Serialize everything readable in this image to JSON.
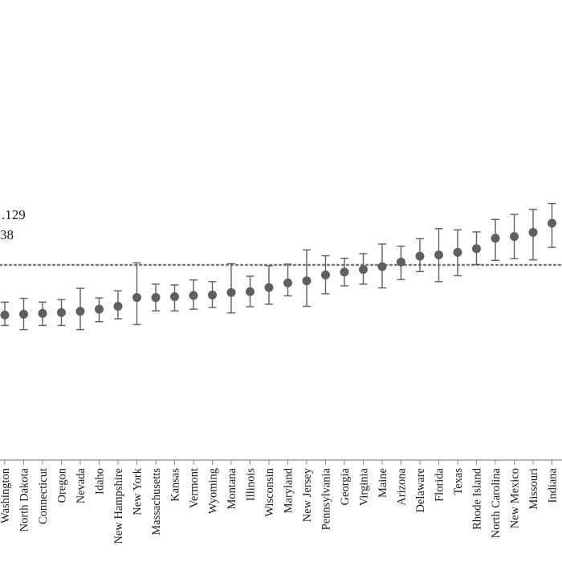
{
  "chart_data": {
    "type": "scatter",
    "title": "",
    "xlabel": "",
    "ylabel": "",
    "ylim": [
      -0.4,
      0.4
    ],
    "grid": false,
    "legend": "none",
    "reference_line": {
      "y": 0.0,
      "style": "dotted"
    },
    "annotations": [
      ".129",
      "38"
    ],
    "colors": {
      "marker": "#5f5f5f",
      "errorbar": "#5f5f5f",
      "reference_line": "#7a7a7a",
      "axis": "#8a8a8a",
      "text": "#1a1a1a"
    },
    "categories": [
      "Washington",
      "North Dakota",
      "Connecticut",
      "Oregon",
      "Nevada",
      "Idaho",
      "New Hampshire",
      "New York",
      "Massachusetts",
      "Kansas",
      "Vermont",
      "Wyoming",
      "Montana",
      "Illinois",
      "Wisconsin",
      "Maryland",
      "New Jersey",
      "Pennsylvania",
      "Georgia",
      "Virginia",
      "Maine",
      "Arizona",
      "Delaware",
      "Florida",
      "Texas",
      "Rhode Island",
      "North Carolina",
      "New Mexico",
      "Missouri",
      "Indiana"
    ],
    "series": [
      {
        "values": [
          -0.24,
          -0.236,
          -0.232,
          -0.228,
          -0.222,
          -0.212,
          -0.198,
          -0.156,
          -0.156,
          -0.152,
          -0.146,
          -0.144,
          -0.132,
          -0.128,
          -0.108,
          -0.086,
          -0.076,
          -0.048,
          -0.034,
          -0.022,
          -0.008,
          0.014,
          0.042,
          0.048,
          0.06,
          0.078,
          0.128,
          0.136,
          0.156,
          0.2
        ],
        "lower": [
          -0.29,
          -0.31,
          -0.29,
          -0.29,
          -0.31,
          -0.272,
          -0.258,
          -0.286,
          -0.22,
          -0.22,
          -0.212,
          -0.204,
          -0.23,
          -0.2,
          -0.188,
          -0.148,
          -0.198,
          -0.138,
          -0.1,
          -0.092,
          -0.11,
          -0.07,
          -0.032,
          -0.08,
          -0.052,
          0.002,
          0.022,
          0.03,
          0.024,
          0.084
        ],
        "upper": [
          -0.178,
          -0.16,
          -0.178,
          -0.166,
          -0.112,
          -0.158,
          -0.124,
          0.01,
          -0.092,
          -0.096,
          -0.072,
          -0.08,
          0.006,
          -0.054,
          -0.004,
          0.004,
          0.072,
          0.044,
          0.032,
          0.054,
          0.1,
          0.09,
          0.126,
          0.174,
          0.168,
          0.158,
          0.218,
          0.242,
          0.266,
          0.294
        ]
      }
    ]
  }
}
